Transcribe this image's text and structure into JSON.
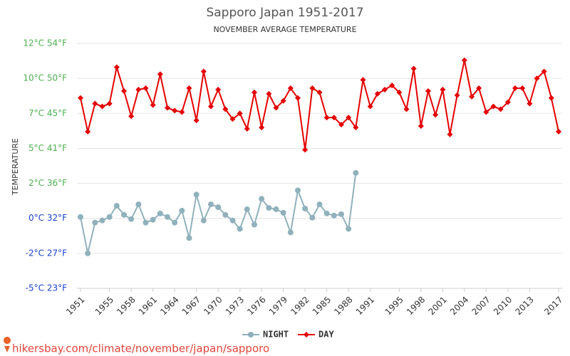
{
  "chart_data": {
    "type": "line",
    "title": "Sapporo Japan 1951-2017",
    "subtitle": "NOVEMBER AVERAGE TEMPERATURE",
    "y_label": "TEMPERATURE",
    "footer": "hikersbay.com/climate/november/japan/sapporo",
    "x": [
      1951,
      1952,
      1953,
      1954,
      1955,
      1956,
      1957,
      1958,
      1959,
      1960,
      1961,
      1962,
      1963,
      1964,
      1965,
      1966,
      1967,
      1968,
      1969,
      1970,
      1971,
      1972,
      1973,
      1974,
      1975,
      1976,
      1977,
      1978,
      1979,
      1980,
      1981,
      1982,
      1983,
      1984,
      1985,
      1986,
      1987,
      1988,
      1989,
      1990,
      1991,
      1992,
      1993,
      1994,
      1995,
      1996,
      1997,
      1998,
      1999,
      2000,
      2001,
      2002,
      2003,
      2004,
      2005,
      2006,
      2007,
      2008,
      2009,
      2010,
      2011,
      2012,
      2013,
      2014,
      2015,
      2016,
      2017
    ],
    "xlim": [
      1951,
      2017
    ],
    "xticks": [
      1951,
      1955,
      1958,
      1961,
      1964,
      1967,
      1970,
      1973,
      1976,
      1979,
      1982,
      1985,
      1988,
      1991,
      1995,
      1998,
      2001,
      2004,
      2007,
      2010,
      2013,
      2017
    ],
    "ylim": [
      -5,
      12.5
    ],
    "yticks": [
      {
        "value": -5,
        "label": "-5°C 23°F"
      },
      {
        "value": -2.5,
        "label": "-2°C 27°F"
      },
      {
        "value": 0,
        "label": "0°C 32°F"
      },
      {
        "value": 2.5,
        "label": "2°C 36°F"
      },
      {
        "value": 5,
        "label": "5°C 41°F"
      },
      {
        "value": 7.5,
        "label": "7°C 45°F"
      },
      {
        "value": 10,
        "label": "10°C 50°F"
      },
      {
        "value": 12.5,
        "label": "12°C 54°F"
      }
    ],
    "grid": true,
    "series": [
      {
        "name": "NIGHT",
        "color": "#90b1bc",
        "marker": "circle",
        "values": [
          0.1,
          -2.5,
          -0.3,
          -0.15,
          0.1,
          0.9,
          0.25,
          -0.05,
          1.0,
          -0.3,
          -0.1,
          0.35,
          0.1,
          -0.3,
          0.55,
          -1.4,
          1.7,
          -0.15,
          1.0,
          0.8,
          0.25,
          -0.15,
          -0.75,
          0.65,
          -0.45,
          1.4,
          0.75,
          0.65,
          0.4,
          -1.0,
          2.0,
          0.7,
          0.05,
          1.0,
          0.35,
          0.2,
          0.3,
          -0.75,
          3.25,
          null,
          null,
          null,
          null,
          null,
          null,
          null,
          null,
          null,
          null,
          null,
          null,
          null,
          null,
          null,
          null,
          null,
          null,
          null,
          null,
          null,
          null,
          null,
          null,
          null,
          null,
          null,
          null
        ]
      },
      {
        "name": "DAY",
        "color": "#e50000",
        "marker": "diamond",
        "values": [
          8.6,
          6.2,
          8.2,
          8.0,
          8.2,
          10.8,
          9.1,
          7.3,
          9.2,
          9.3,
          8.1,
          10.3,
          7.9,
          7.7,
          7.6,
          9.3,
          7.0,
          10.5,
          8.0,
          9.2,
          7.8,
          7.1,
          7.5,
          6.4,
          9.0,
          6.5,
          8.9,
          7.9,
          8.4,
          9.3,
          8.6,
          4.9,
          9.3,
          9.0,
          7.2,
          7.2,
          6.7,
          7.2,
          6.5,
          9.9,
          8.0,
          8.9,
          9.2,
          9.5,
          9.0,
          7.8,
          10.7,
          6.6,
          9.1,
          7.4,
          9.2,
          6.0,
          8.8,
          11.3,
          8.7,
          9.3,
          7.6,
          8.0,
          7.8,
          8.3,
          9.3,
          9.3,
          8.2,
          10.0,
          10.5,
          8.6,
          6.2
        ]
      }
    ]
  }
}
